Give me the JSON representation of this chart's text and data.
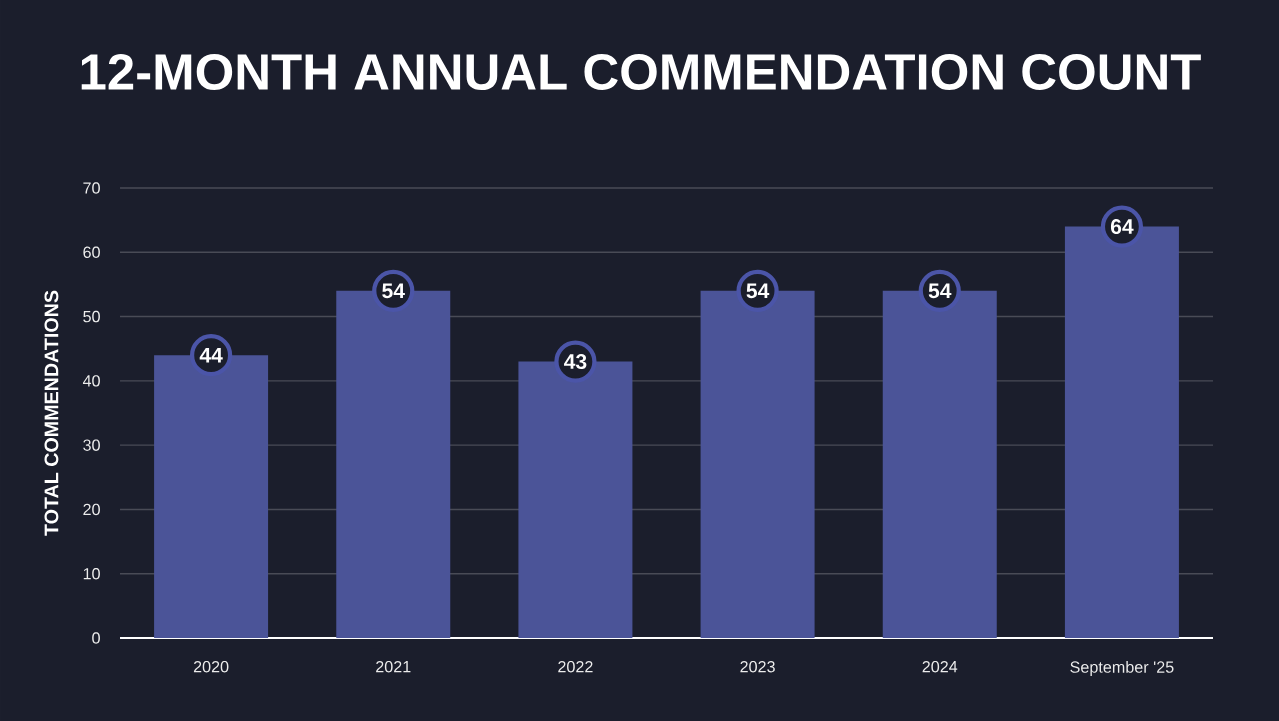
{
  "chart_data": {
    "type": "bar",
    "title": "12-MONTH ANNUAL COMMENDATION COUNT",
    "ylabel": "TOTAL COMMENDATIONS",
    "categories": [
      "2020",
      "2021",
      "2022",
      "2023",
      "2024",
      "September '25"
    ],
    "values": [
      44,
      54,
      43,
      54,
      54,
      64
    ],
    "color": "#4b5498",
    "ylim": [
      0,
      70
    ],
    "yticks": [
      0,
      10,
      20,
      30,
      40,
      50,
      60,
      70
    ],
    "grid": "y",
    "data_labels": true
  }
}
